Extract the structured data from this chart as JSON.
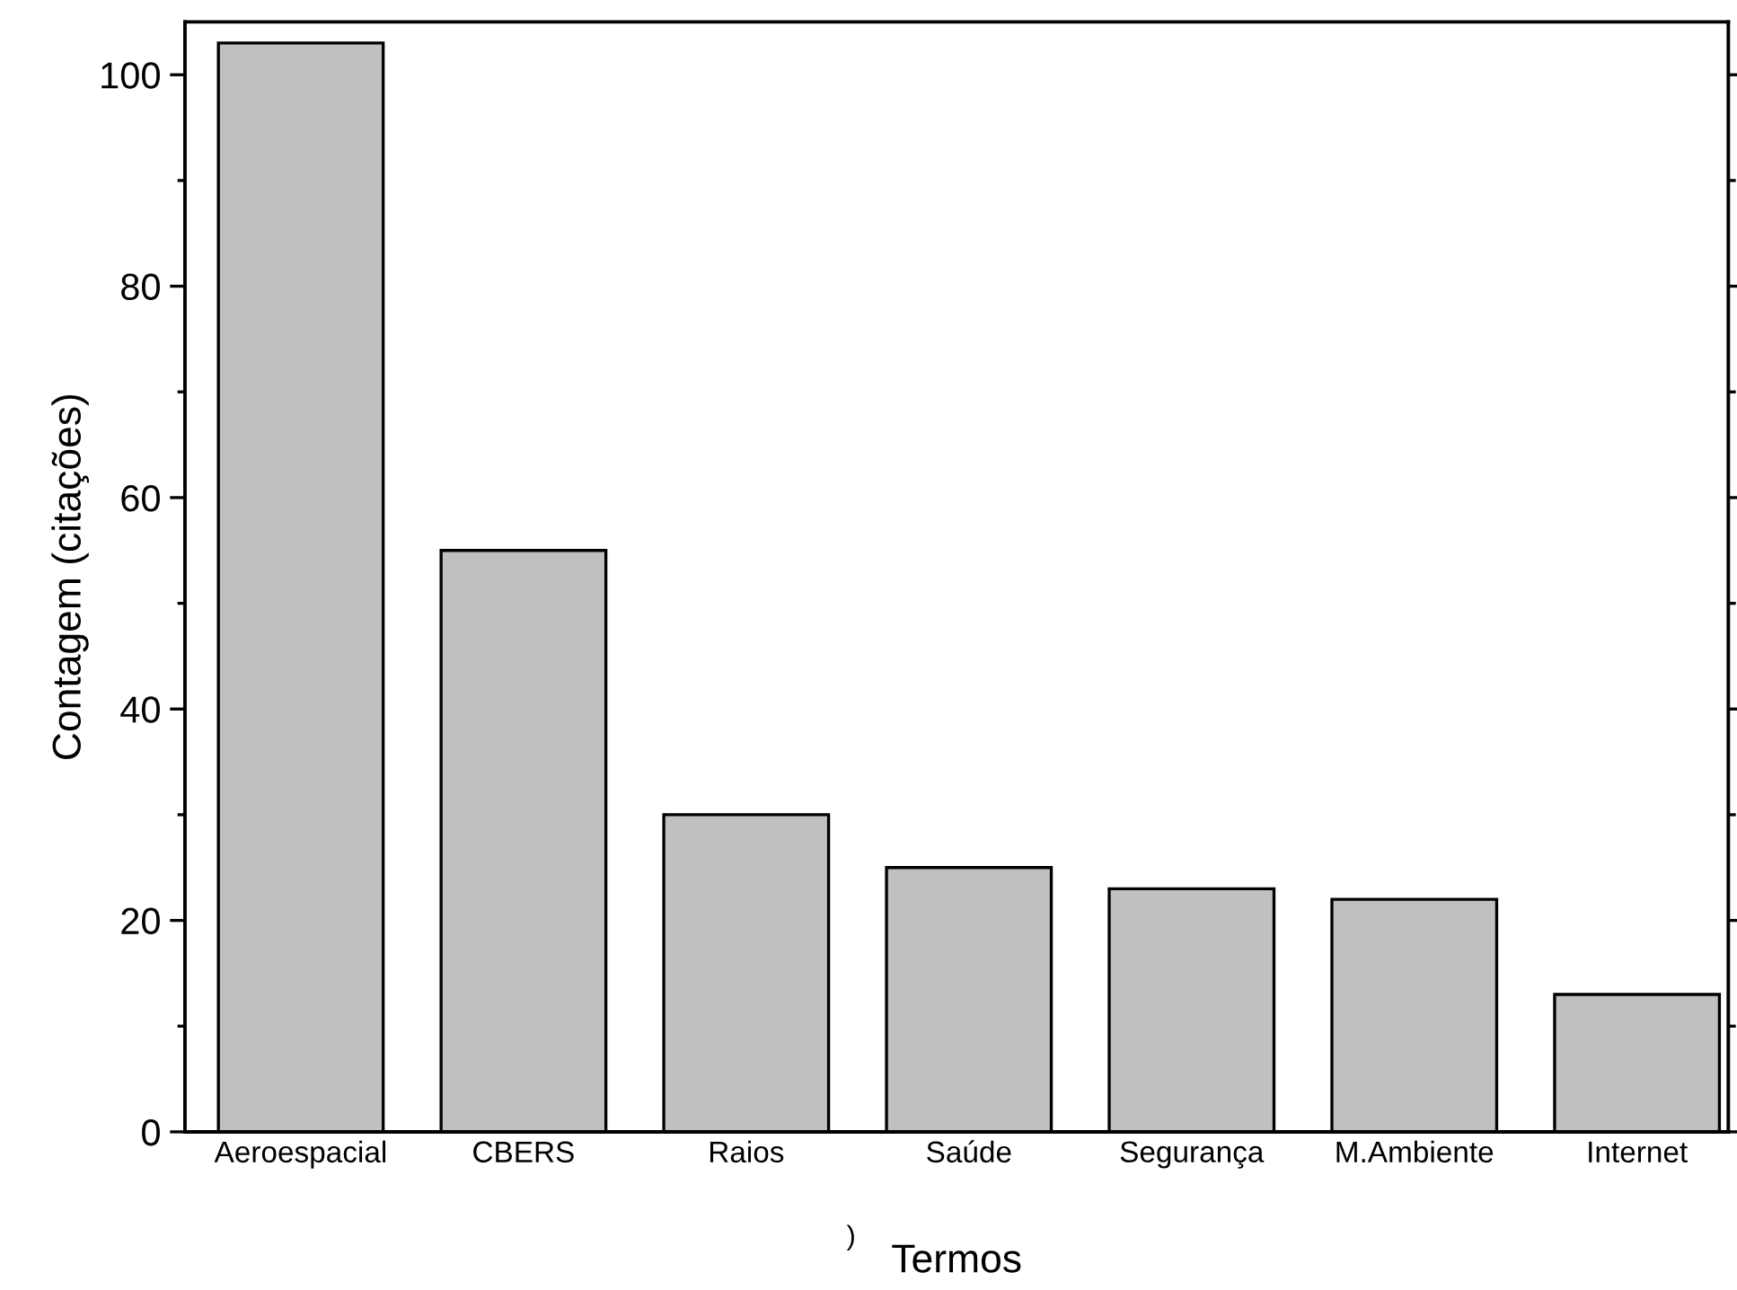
{
  "chart_data": {
    "type": "bar",
    "xlabel": "Termos",
    "ylabel": "Contagem (citações)",
    "categories": [
      "Aeroespacial",
      "CBERS",
      "Raios",
      "Saúde",
      "Segurança",
      "M.Ambiente",
      "Internet"
    ],
    "values": [
      103,
      55,
      30,
      25,
      23,
      22,
      13
    ],
    "color": "#c0c0c0",
    "ylim": [
      0,
      105
    ],
    "yticks": [
      0,
      20,
      40,
      60,
      80,
      100
    ],
    "grid": false,
    "legend": false,
    "annotations": [
      ")"
    ]
  }
}
